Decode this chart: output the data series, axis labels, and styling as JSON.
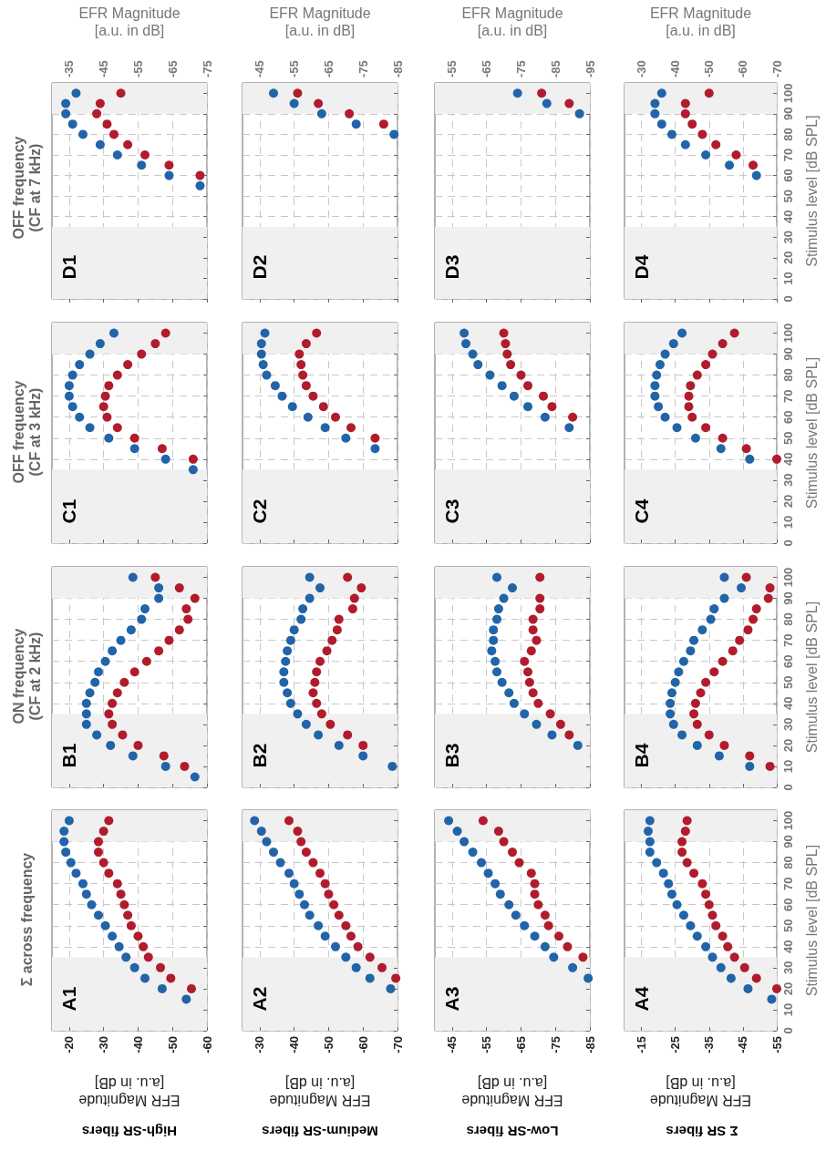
{
  "chart_data": [
    {
      "type": "scatter",
      "title": "D1",
      "subtitle": "OFF frequency\n(CF at 7 kHz)",
      "xlabel": "EFR Magnitude\n[a.u. in dB]",
      "xlim": [
        -30,
        -75
      ],
      "xticks": [
        -35,
        -45,
        -55,
        -65,
        -75
      ],
      "ylim": [
        0,
        105
      ],
      "yticks": [
        0,
        10,
        20,
        30,
        40,
        50,
        60,
        70,
        80,
        90,
        100
      ],
      "tick_labels": "x",
      "grid": true,
      "marker": "circle",
      "bands": [
        {
          "axis": "y",
          "from": 0,
          "to": 35,
          "color": "#f0f0f0"
        },
        {
          "axis": "y",
          "from": 90,
          "to": 105,
          "color": "#f0f0f0"
        }
      ],
      "series": [
        {
          "color": "#2264a8",
          "x": [
            -73,
            -64,
            -56,
            -49,
            -44,
            -39,
            -36,
            -34,
            -34,
            -37
          ],
          "values": [
            55,
            60,
            65,
            70,
            75,
            80,
            85,
            90,
            95,
            100
          ]
        },
        {
          "color": "#b11c2c",
          "x": [
            -73,
            -64,
            -57,
            -52,
            -48,
            -46,
            -43,
            -44,
            -50
          ],
          "values": [
            60,
            65,
            70,
            75,
            80,
            85,
            90,
            95,
            100
          ]
        }
      ]
    },
    {
      "type": "scatter",
      "title": "D2",
      "xlabel": "EFR Magnitude\n[a.u. in dB]",
      "xlim": [
        -40,
        -85
      ],
      "xticks": [
        -45,
        -55,
        -65,
        -75,
        -85
      ],
      "ylim": [
        0,
        105
      ],
      "yticks": [
        0,
        10,
        20,
        30,
        40,
        50,
        60,
        70,
        80,
        90,
        100
      ],
      "tick_labels": "x",
      "grid": true,
      "marker": "circle",
      "bands": [
        {
          "axis": "y",
          "from": 0,
          "to": 35,
          "color": "#f0f0f0"
        },
        {
          "axis": "y",
          "from": 90,
          "to": 105,
          "color": "#f0f0f0"
        }
      ],
      "series": [
        {
          "color": "#2264a8",
          "x": [
            -84,
            -73,
            -63,
            -55,
            -49
          ],
          "values": [
            80,
            85,
            90,
            95,
            100
          ]
        },
        {
          "color": "#b11c2c",
          "x": [
            -81,
            -71,
            -62,
            -56
          ],
          "values": [
            85,
            90,
            95,
            100
          ]
        }
      ]
    },
    {
      "type": "scatter",
      "title": "D3",
      "xlabel": "EFR Magnitude\n[a.u. in dB]",
      "xlim": [
        -50,
        -95
      ],
      "xticks": [
        -55,
        -65,
        -75,
        -85,
        -95
      ],
      "ylim": [
        0,
        105
      ],
      "yticks": [
        0,
        10,
        20,
        30,
        40,
        50,
        60,
        70,
        80,
        90,
        100
      ],
      "tick_labels": "x",
      "grid": true,
      "marker": "circle",
      "bands": [
        {
          "axis": "y",
          "from": 0,
          "to": 35,
          "color": "#f0f0f0"
        },
        {
          "axis": "y",
          "from": 90,
          "to": 105,
          "color": "#f0f0f0"
        }
      ],
      "series": [
        {
          "color": "#2264a8",
          "x": [
            -92,
            -82.5,
            -74
          ],
          "values": [
            90,
            95,
            100
          ]
        },
        {
          "color": "#b11c2c",
          "x": [
            -89,
            -81
          ],
          "values": [
            95,
            100
          ]
        }
      ]
    },
    {
      "type": "scatter",
      "title": "D4",
      "xlabel": "EFR Magnitude\n[a.u. in dB]",
      "ylabel": "Stimulus level [dB SPL]",
      "xlim": [
        -25,
        -70
      ],
      "xticks": [
        -30,
        -40,
        -50,
        -60,
        -70
      ],
      "ylim": [
        0,
        105
      ],
      "yticks": [
        0,
        10,
        20,
        30,
        40,
        50,
        60,
        70,
        80,
        90,
        100
      ],
      "grid": true,
      "marker": "circle",
      "bands": [
        {
          "axis": "y",
          "from": 0,
          "to": 35,
          "color": "#f0f0f0"
        },
        {
          "axis": "y",
          "from": 90,
          "to": 105,
          "color": "#f0f0f0"
        }
      ],
      "series": [
        {
          "color": "#2264a8",
          "x": [
            -64,
            -56,
            -49,
            -43,
            -39,
            -36,
            -34,
            -34,
            -36
          ],
          "values": [
            60,
            65,
            70,
            75,
            80,
            85,
            90,
            95,
            100
          ]
        },
        {
          "color": "#b11c2c",
          "x": [
            -63,
            -58,
            -52,
            -48,
            -45,
            -43,
            -43,
            -50
          ],
          "values": [
            65,
            70,
            75,
            80,
            85,
            90,
            95,
            100
          ]
        }
      ]
    },
    {
      "type": "scatter",
      "title": "C1",
      "subtitle": "OFF frequency\n(CF at 3 kHz)",
      "xlim": [
        -30,
        -75
      ],
      "xticks": [
        -35,
        -45,
        -55,
        -65,
        -75
      ],
      "ylim": [
        0,
        105
      ],
      "yticks": [
        0,
        10,
        20,
        30,
        40,
        50,
        60,
        70,
        80,
        90,
        100
      ],
      "tick_labels": false,
      "grid": true,
      "marker": "circle",
      "bands": [
        {
          "axis": "y",
          "from": 0,
          "to": 35,
          "color": "#f0f0f0"
        },
        {
          "axis": "y",
          "from": 90,
          "to": 105,
          "color": "#f0f0f0"
        }
      ],
      "series": [
        {
          "color": "#2264a8",
          "x": [
            -71,
            -63,
            -54,
            -46.5,
            -41,
            -38,
            -36,
            -35,
            -35,
            -36,
            -38,
            -41,
            -44,
            -48
          ],
          "values": [
            35,
            40,
            45,
            50,
            55,
            60,
            65,
            70,
            75,
            80,
            85,
            90,
            95,
            100
          ]
        },
        {
          "color": "#b11c2c",
          "x": [
            -71,
            -62,
            -54,
            -49,
            -46,
            -45,
            -45.5,
            -46.5,
            -49,
            -52,
            -56,
            -60,
            -63
          ],
          "values": [
            40,
            45,
            50,
            55,
            60,
            65,
            70,
            75,
            80,
            85,
            90,
            95,
            100
          ]
        }
      ]
    },
    {
      "type": "scatter",
      "title": "C2",
      "xlim": [
        -40,
        -85
      ],
      "xticks": [
        -45,
        -55,
        -65,
        -75,
        -85
      ],
      "ylim": [
        0,
        105
      ],
      "yticks": [
        0,
        10,
        20,
        30,
        40,
        50,
        60,
        70,
        80,
        90,
        100
      ],
      "tick_labels": false,
      "grid": true,
      "marker": "circle",
      "bands": [
        {
          "axis": "y",
          "from": 0,
          "to": 35,
          "color": "#f0f0f0"
        },
        {
          "axis": "y",
          "from": 90,
          "to": 105,
          "color": "#f0f0f0"
        }
      ],
      "series": [
        {
          "color": "#2264a8",
          "x": [
            -78.5,
            -70,
            -64,
            -59,
            -54.5,
            -51.5,
            -49.5,
            -47,
            -46,
            -45.5,
            -45.5,
            -46.5
          ],
          "values": [
            45,
            50,
            55,
            60,
            65,
            70,
            75,
            80,
            85,
            90,
            95,
            100
          ]
        },
        {
          "color": "#b11c2c",
          "x": [
            -78.5,
            -71.5,
            -67,
            -63.5,
            -60.5,
            -58.5,
            -57.5,
            -57,
            -56.5,
            -58.5,
            -61.5
          ],
          "values": [
            50,
            55,
            60,
            65,
            70,
            75,
            80,
            85,
            90,
            95,
            100
          ]
        }
      ]
    },
    {
      "type": "scatter",
      "title": "C3",
      "xlim": [
        -50,
        -95
      ],
      "xticks": [
        -55,
        -65,
        -75,
        -85,
        -95
      ],
      "ylim": [
        0,
        105
      ],
      "yticks": [
        0,
        10,
        20,
        30,
        40,
        50,
        60,
        70,
        80,
        90,
        100
      ],
      "tick_labels": false,
      "grid": true,
      "marker": "circle",
      "bands": [
        {
          "axis": "y",
          "from": 0,
          "to": 35,
          "color": "#f0f0f0"
        },
        {
          "axis": "y",
          "from": 90,
          "to": 105,
          "color": "#f0f0f0"
        }
      ],
      "series": [
        {
          "color": "#2264a8",
          "x": [
            -89,
            -82,
            -77,
            -73,
            -69.5,
            -66,
            -62.5,
            -61,
            -59,
            -58.5
          ],
          "values": [
            55,
            60,
            65,
            70,
            75,
            80,
            85,
            90,
            95,
            100
          ]
        },
        {
          "color": "#b11c2c",
          "x": [
            -90,
            -84,
            -81.5,
            -77,
            -75,
            -72,
            -71,
            -70.5,
            -70
          ],
          "values": [
            60,
            65,
            70,
            75,
            80,
            85,
            90,
            95,
            100
          ]
        }
      ]
    },
    {
      "type": "scatter",
      "title": "C4",
      "ylabel": "Stimulus level [dB SPL]",
      "xlim": [
        -25,
        -70
      ],
      "xticks": [
        -30,
        -40,
        -50,
        -60,
        -70
      ],
      "ylim": [
        0,
        105
      ],
      "yticks": [
        0,
        10,
        20,
        30,
        40,
        50,
        60,
        70,
        80,
        90,
        100
      ],
      "tick_labels": "y",
      "grid": true,
      "marker": "circle",
      "bands": [
        {
          "axis": "y",
          "from": 0,
          "to": 35,
          "color": "#f0f0f0"
        },
        {
          "axis": "y",
          "from": 90,
          "to": 105,
          "color": "#f0f0f0"
        }
      ],
      "series": [
        {
          "color": "#2264a8",
          "x": [
            -62,
            -53.5,
            -46,
            -40.5,
            -37,
            -35,
            -34,
            -34,
            -34.5,
            -35.5,
            -37,
            -39.5,
            -42
          ],
          "values": [
            40,
            45,
            50,
            55,
            60,
            65,
            70,
            75,
            80,
            85,
            90,
            95,
            100
          ]
        },
        {
          "color": "#b11c2c",
          "x": [
            -70,
            -61,
            -54,
            -49,
            -45,
            -44,
            -44,
            -44.5,
            -46.5,
            -49,
            -51,
            -54,
            -57.5
          ],
          "values": [
            40,
            45,
            50,
            55,
            60,
            65,
            70,
            75,
            80,
            85,
            90,
            95,
            100
          ]
        }
      ]
    },
    {
      "type": "scatter",
      "title": "B1",
      "subtitle": "ON frequency\n(CF at 2 kHz)",
      "xlim": [
        -30,
        -75
      ],
      "xticks": [
        -35,
        -45,
        -55,
        -65,
        -75
      ],
      "ylim": [
        0,
        105
      ],
      "yticks": [
        0,
        10,
        20,
        30,
        40,
        50,
        60,
        70,
        80,
        90,
        100
      ],
      "tick_labels": false,
      "grid": true,
      "marker": "circle",
      "bands": [
        {
          "axis": "y",
          "from": 0,
          "to": 35,
          "color": "#f0f0f0"
        },
        {
          "axis": "y",
          "from": 90,
          "to": 105,
          "color": "#f0f0f0"
        }
      ],
      "series": [
        {
          "color": "#2264a8",
          "x": [
            -71.5,
            -63,
            -53.5,
            -47,
            -43,
            -40,
            -40,
            -40,
            -41,
            -42.5,
            -43.5,
            -45.5,
            -47.5,
            -50,
            -53,
            -56,
            -57,
            -61,
            -61,
            -53.5
          ],
          "values": [
            5,
            10,
            15,
            20,
            25,
            30,
            35,
            40,
            45,
            50,
            55,
            60,
            65,
            70,
            75,
            80,
            85,
            90,
            95,
            100
          ]
        },
        {
          "color": "#b11c2c",
          "x": [
            -68.5,
            -62.5,
            -55,
            -50.5,
            -47.5,
            -46.5,
            -47.5,
            -49,
            -51,
            -54,
            -57.5,
            -61,
            -64,
            -67,
            -69.5,
            -69,
            -71.5,
            -67,
            -60
          ],
          "values": [
            10,
            15,
            20,
            25,
            30,
            35,
            40,
            45,
            50,
            55,
            60,
            65,
            70,
            75,
            80,
            85,
            90,
            95,
            100
          ]
        }
      ]
    },
    {
      "type": "scatter",
      "title": "B2",
      "xlim": [
        -40,
        -85
      ],
      "xticks": [
        -45,
        -55,
        -65,
        -75,
        -85
      ],
      "ylim": [
        0,
        105
      ],
      "yticks": [
        0,
        10,
        20,
        30,
        40,
        50,
        60,
        70,
        80,
        90,
        100
      ],
      "tick_labels": false,
      "grid": true,
      "marker": "circle",
      "bands": [
        {
          "axis": "y",
          "from": 0,
          "to": 35,
          "color": "#f0f0f0"
        },
        {
          "axis": "y",
          "from": 90,
          "to": 105,
          "color": "#f0f0f0"
        }
      ],
      "series": [
        {
          "color": "#2264a8",
          "x": [
            -83.5,
            -75,
            -68,
            -62,
            -58.5,
            -56,
            -54,
            -53,
            -52,
            -52,
            -52.5,
            -53,
            -54,
            -55,
            -57,
            -57.5,
            -59.5,
            -62.5,
            -59.5
          ],
          "values": [
            10,
            15,
            20,
            25,
            30,
            35,
            40,
            45,
            50,
            55,
            60,
            65,
            70,
            75,
            80,
            85,
            90,
            95,
            100
          ]
        },
        {
          "color": "#b11c2c",
          "x": [
            -75,
            -70.5,
            -65.5,
            -63,
            -61.5,
            -60.5,
            -61,
            -61.5,
            -62.5,
            -64.5,
            -66,
            -67.5,
            -68,
            -72,
            -72.5,
            -74.5,
            -70.5
          ],
          "values": [
            20,
            25,
            30,
            35,
            40,
            45,
            50,
            55,
            60,
            65,
            70,
            75,
            80,
            85,
            90,
            95,
            100
          ]
        }
      ]
    },
    {
      "type": "scatter",
      "title": "B3",
      "xlim": [
        -50,
        -95
      ],
      "xticks": [
        -55,
        -65,
        -75,
        -85,
        -95
      ],
      "ylim": [
        0,
        105
      ],
      "yticks": [
        0,
        10,
        20,
        30,
        40,
        50,
        60,
        70,
        80,
        90,
        100
      ],
      "tick_labels": false,
      "grid": true,
      "marker": "circle",
      "bands": [
        {
          "axis": "y",
          "from": 0,
          "to": 35,
          "color": "#f0f0f0"
        },
        {
          "axis": "y",
          "from": 90,
          "to": 105,
          "color": "#f0f0f0"
        }
      ],
      "series": [
        {
          "color": "#2264a8",
          "x": [
            -91.5,
            -84,
            -79.5,
            -76,
            -73,
            -71.5,
            -69.5,
            -68,
            -67.5,
            -66.5,
            -67,
            -67,
            -68,
            -68.5,
            -70,
            -72.5,
            -68
          ],
          "values": [
            20,
            25,
            30,
            35,
            40,
            45,
            50,
            55,
            60,
            65,
            70,
            75,
            80,
            85,
            90,
            95,
            100
          ]
        },
        {
          "color": "#b11c2c",
          "x": [
            -89,
            -86.5,
            -83.5,
            -80,
            -78.5,
            -77.5,
            -77,
            -76,
            -78,
            -79.5,
            -78.5,
            -78.5,
            -80.5,
            -80.5,
            -80.5
          ],
          "values": [
            25,
            30,
            35,
            40,
            45,
            50,
            55,
            60,
            65,
            70,
            75,
            80,
            85,
            90,
            100
          ]
        }
      ]
    },
    {
      "type": "scatter",
      "title": "B4",
      "ylabel": "Stimulus level [dB SPL]",
      "xlim": [
        -25,
        -70
      ],
      "xticks": [
        -30,
        -40,
        -50,
        -60,
        -70
      ],
      "ylim": [
        0,
        105
      ],
      "yticks": [
        0,
        10,
        20,
        30,
        40,
        50,
        60,
        70,
        80,
        90,
        100
      ],
      "tick_labels": "y",
      "grid": true,
      "marker": "circle",
      "bands": [
        {
          "axis": "y",
          "from": 0,
          "to": 35,
          "color": "#f0f0f0"
        },
        {
          "axis": "y",
          "from": 90,
          "to": 105,
          "color": "#f0f0f0"
        }
      ],
      "series": [
        {
          "color": "#2264a8",
          "x": [
            -62,
            -53,
            -46.5,
            -42,
            -39.5,
            -38.5,
            -38.5,
            -39,
            -40,
            -41,
            -42.5,
            -44.5,
            -45.5,
            -48,
            -50.5,
            -51.5,
            -54.5,
            -59.5,
            -54.5
          ],
          "values": [
            10,
            15,
            20,
            25,
            30,
            35,
            40,
            45,
            50,
            55,
            60,
            65,
            70,
            75,
            80,
            85,
            90,
            95,
            100
          ]
        },
        {
          "color": "#b11c2c",
          "x": [
            -68,
            -62,
            -54.5,
            -50,
            -46.5,
            -45.5,
            -46,
            -47.5,
            -49,
            -51.5,
            -54,
            -57,
            -59,
            -61.5,
            -63,
            -64,
            -67.5,
            -68,
            -61
          ],
          "values": [
            10,
            15,
            20,
            25,
            30,
            35,
            40,
            45,
            50,
            55,
            60,
            65,
            70,
            75,
            80,
            85,
            90,
            95,
            100
          ]
        }
      ]
    },
    {
      "type": "scatter",
      "title": "A1",
      "subtitle": "Σ across frequency",
      "xlabel": "EFR Magnitude\n[a.u. in dB]",
      "annotations": [
        "High-SR fibers"
      ],
      "xlim": [
        -15,
        -60
      ],
      "xticks": [
        -20,
        -30,
        -40,
        -50,
        -60
      ],
      "ylim": [
        0,
        105
      ],
      "yticks": [
        0,
        10,
        20,
        30,
        40,
        50,
        60,
        70,
        80,
        90,
        100
      ],
      "tick_labels": "x",
      "grid": true,
      "marker": "circle",
      "bands": [
        {
          "axis": "y",
          "from": 0,
          "to": 35,
          "color": "#f0f0f0"
        },
        {
          "axis": "y",
          "from": 90,
          "to": 105,
          "color": "#f0f0f0"
        }
      ],
      "series": [
        {
          "color": "#2264a8",
          "x": [
            -54,
            -47,
            -42,
            -39,
            -36.5,
            -34.5,
            -32.5,
            -30.5,
            -28.5,
            -26.5,
            -25,
            -24,
            -22,
            -20.5,
            -19,
            -18.5,
            -18.5,
            -20
          ],
          "values": [
            15,
            20,
            25,
            30,
            35,
            40,
            45,
            50,
            55,
            60,
            65,
            70,
            75,
            80,
            85,
            90,
            95,
            100
          ]
        },
        {
          "color": "#b11c2c",
          "x": [
            -55.5,
            -49.5,
            -46.5,
            -43,
            -41.5,
            -40,
            -38,
            -37,
            -36,
            -35,
            -34,
            -31.5,
            -30,
            -28.5,
            -28.5,
            -30,
            -31.5
          ],
          "values": [
            20,
            25,
            30,
            35,
            40,
            45,
            50,
            55,
            60,
            65,
            70,
            75,
            80,
            85,
            90,
            95,
            100
          ]
        }
      ]
    },
    {
      "type": "scatter",
      "title": "A2",
      "xlabel": "EFR Magnitude\n[a.u. in dB]",
      "annotations": [
        "Medium-SR fibers"
      ],
      "xlim": [
        -25,
        -70
      ],
      "xticks": [
        -30,
        -40,
        -50,
        -60,
        -70
      ],
      "ylim": [
        0,
        105
      ],
      "yticks": [
        0,
        10,
        20,
        30,
        40,
        50,
        60,
        70,
        80,
        90,
        100
      ],
      "tick_labels": "x",
      "grid": true,
      "marker": "circle",
      "bands": [
        {
          "axis": "y",
          "from": 0,
          "to": 35,
          "color": "#f0f0f0"
        },
        {
          "axis": "y",
          "from": 90,
          "to": 105,
          "color": "#f0f0f0"
        }
      ],
      "series": [
        {
          "color": "#2264a8",
          "x": [
            -68,
            -62,
            -58,
            -55,
            -52,
            -49,
            -47,
            -44.5,
            -43,
            -41.5,
            -40,
            -38.5,
            -36,
            -34,
            -32,
            -30.5,
            -28.5
          ],
          "values": [
            20,
            25,
            30,
            35,
            40,
            45,
            50,
            55,
            60,
            65,
            70,
            75,
            80,
            85,
            90,
            95,
            100
          ]
        },
        {
          "color": "#b11c2c",
          "x": [
            -69.5,
            -65.5,
            -62,
            -58.5,
            -56.5,
            -55,
            -53,
            -51.5,
            -50,
            -49,
            -47.5,
            -45.5,
            -43.5,
            -42,
            -41,
            -38.5
          ],
          "values": [
            25,
            30,
            35,
            40,
            45,
            50,
            55,
            60,
            65,
            70,
            75,
            80,
            85,
            90,
            95,
            100
          ]
        }
      ]
    },
    {
      "type": "scatter",
      "title": "A3",
      "xlabel": "EFR Magnitude\n[a.u. in dB]",
      "annotations": [
        "Low-SR fibers"
      ],
      "xlim": [
        -40,
        -85
      ],
      "xticks": [
        -45,
        -55,
        -65,
        -75,
        -85
      ],
      "ylim": [
        0,
        105
      ],
      "yticks": [
        0,
        10,
        20,
        30,
        40,
        50,
        60,
        70,
        80,
        90,
        100
      ],
      "tick_labels": "x",
      "grid": true,
      "marker": "circle",
      "bands": [
        {
          "axis": "y",
          "from": 0,
          "to": 35,
          "color": "#f0f0f0"
        },
        {
          "axis": "y",
          "from": 90,
          "to": 105,
          "color": "#f0f0f0"
        }
      ],
      "series": [
        {
          "color": "#2264a8",
          "x": [
            -84.5,
            -80,
            -74.5,
            -72,
            -69,
            -66,
            -63.5,
            -61.5,
            -59,
            -57.5,
            -55.5,
            -53.5,
            -51,
            -48.5,
            -46.5,
            -44
          ],
          "values": [
            25,
            30,
            35,
            40,
            45,
            50,
            55,
            60,
            65,
            70,
            75,
            80,
            85,
            90,
            95,
            100
          ]
        },
        {
          "color": "#b11c2c",
          "x": [
            -83,
            -78.5,
            -76,
            -73,
            -72,
            -70,
            -69,
            -69,
            -68,
            -64.5,
            -62.5,
            -60,
            -58.5,
            -54
          ],
          "values": [
            35,
            40,
            45,
            50,
            55,
            60,
            65,
            70,
            75,
            80,
            85,
            90,
            95,
            100
          ]
        }
      ]
    },
    {
      "type": "scatter",
      "title": "A4",
      "xlabel": "EFR Magnitude\n[a.u. in dB]",
      "ylabel": "Stimulus level [dB SPL]",
      "annotations": [
        "Σ SR fibers"
      ],
      "xlim": [
        -10,
        -55
      ],
      "xticks": [
        -15,
        -25,
        -35,
        -45,
        -55
      ],
      "ylim": [
        0,
        105
      ],
      "yticks": [
        0,
        10,
        20,
        30,
        40,
        50,
        60,
        70,
        80,
        90,
        100
      ],
      "grid": true,
      "marker": "circle",
      "bands": [
        {
          "axis": "y",
          "from": 0,
          "to": 35,
          "color": "#f0f0f0"
        },
        {
          "axis": "y",
          "from": 90,
          "to": 105,
          "color": "#f0f0f0"
        }
      ],
      "series": [
        {
          "color": "#2264a8",
          "x": [
            -53.5,
            -46.5,
            -41.5,
            -38.5,
            -36,
            -34,
            -31.5,
            -29.5,
            -27.5,
            -25.5,
            -24,
            -23,
            -21.5,
            -19.5,
            -17.5,
            -17.5,
            -17,
            -17.5
          ],
          "values": [
            15,
            20,
            25,
            30,
            35,
            40,
            45,
            50,
            55,
            60,
            65,
            70,
            75,
            80,
            85,
            90,
            95,
            100
          ]
        },
        {
          "color": "#b11c2c",
          "x": [
            -55,
            -49,
            -45.5,
            -42.5,
            -40.5,
            -39,
            -37,
            -36,
            -35,
            -34,
            -33,
            -30.5,
            -28.5,
            -27,
            -27,
            -28,
            -28.5
          ],
          "values": [
            20,
            25,
            30,
            35,
            40,
            45,
            50,
            55,
            60,
            65,
            70,
            75,
            80,
            85,
            90,
            95,
            100
          ]
        }
      ]
    }
  ]
}
